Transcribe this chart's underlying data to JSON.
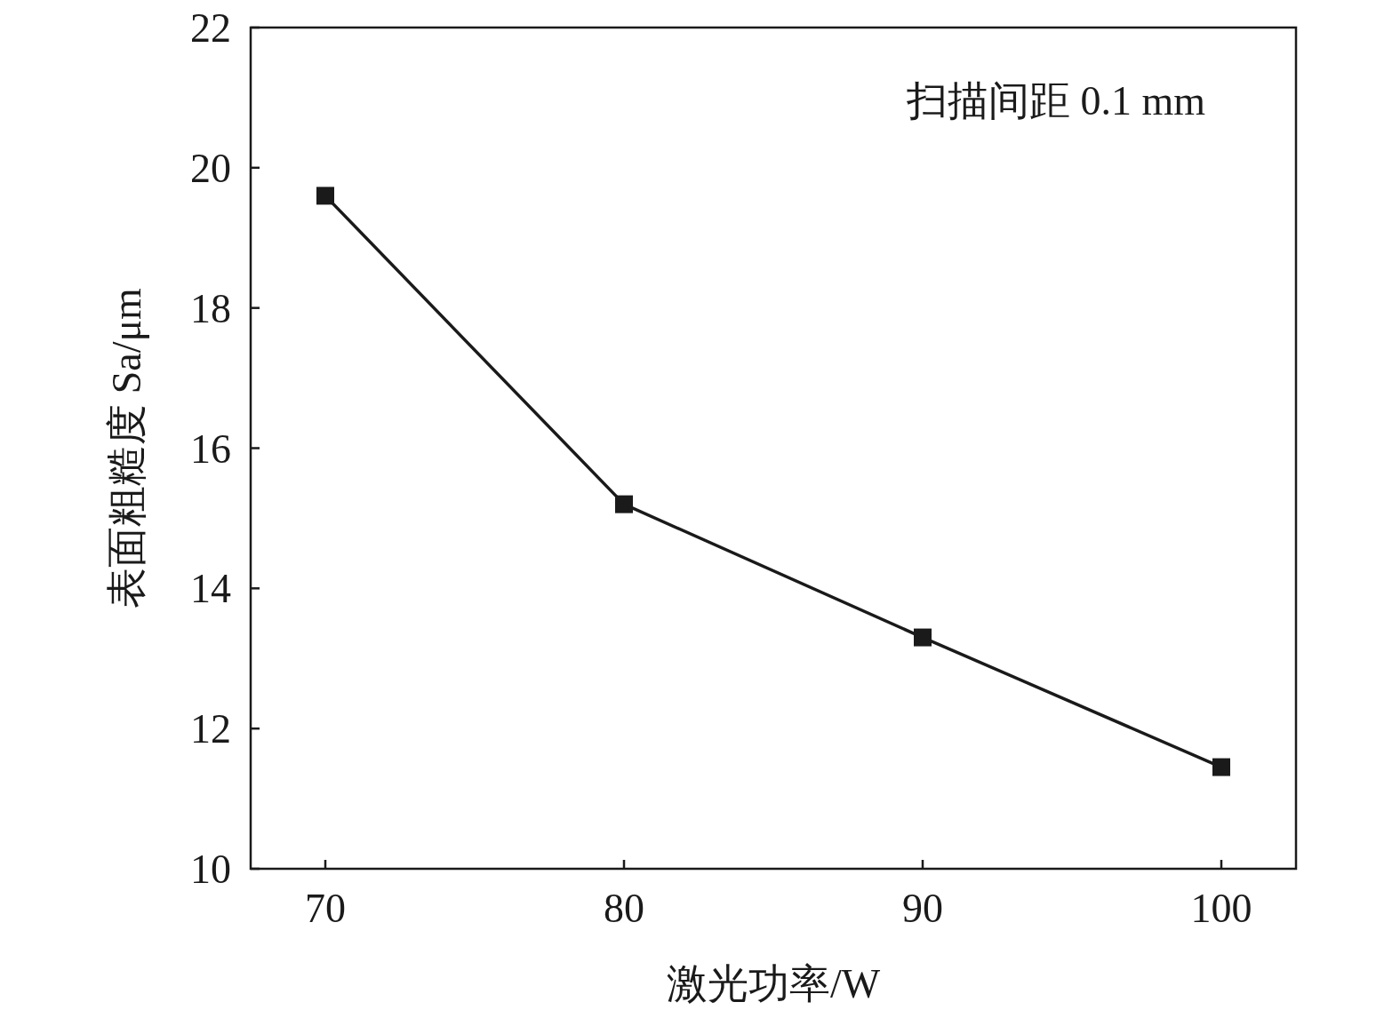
{
  "chart_data": {
    "type": "line",
    "xlabel": "激光功率/W",
    "ylabel": "表面粗糙度 Sa/μm",
    "annotations": [
      "扫描间距 0.1 mm"
    ],
    "x": [
      70,
      80,
      90,
      100
    ],
    "series": [
      {
        "color": "#1a1a1a",
        "values": [
          19.6,
          15.2,
          13.3,
          11.45
        ]
      }
    ],
    "xlim": [
      67.5,
      102.5
    ],
    "ylim": [
      10,
      22
    ],
    "xticks": [
      70,
      80,
      90,
      100
    ],
    "yticks": [
      10,
      12,
      14,
      16,
      18,
      20,
      22
    ],
    "marker": "square",
    "line_style": "solid"
  }
}
